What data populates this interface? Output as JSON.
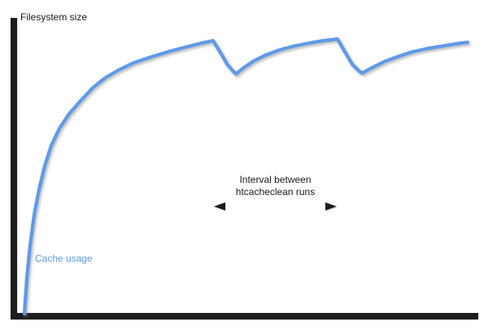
{
  "labels": {
    "filesystem_size": "Filesystem size",
    "cache_usage": "Cache usage",
    "interval_line1": "Interval between",
    "interval_line2": "htcacheclean runs"
  },
  "colors": {
    "curve_blue": "#5e9ae8",
    "line_black": "#1a1a1a",
    "text_black": "#1a1a1a",
    "shadow_gray": "#8a8a8a",
    "background": "#ffffff"
  },
  "chart_data": {
    "type": "line",
    "title": "",
    "xlabel": "",
    "ylabel": "",
    "scale_note": "qualitative sketch, no numeric axes; coordinates are canvas pixels (600x406, y down)",
    "axis": {
      "x": 17,
      "top": 22,
      "bottom": 389,
      "right": 588,
      "thickness": 8
    },
    "series": [
      {
        "name": "Cache usage",
        "color": "#5e9ae8",
        "stroke_width": 4.2,
        "points": [
          [
            30,
            386
          ],
          [
            33,
            342
          ],
          [
            37,
            302
          ],
          [
            42,
            264
          ],
          [
            48,
            233
          ],
          [
            55,
            204
          ],
          [
            63,
            179
          ],
          [
            73,
            158
          ],
          [
            85,
            140
          ],
          [
            99,
            124
          ],
          [
            114,
            108
          ],
          [
            129,
            96
          ],
          [
            146,
            86
          ],
          [
            165,
            77
          ],
          [
            186,
            70
          ],
          [
            209,
            63
          ],
          [
            232,
            57
          ],
          [
            248,
            53
          ],
          [
            262,
            50
          ],
          [
            270,
            63
          ],
          [
            280,
            80
          ],
          [
            287,
            88
          ],
          [
            290,
            91
          ],
          [
            300,
            83
          ],
          [
            312,
            75
          ],
          [
            326,
            68
          ],
          [
            342,
            62
          ],
          [
            360,
            57
          ],
          [
            380,
            53
          ],
          [
            398,
            50
          ],
          [
            415,
            48
          ],
          [
            423,
            62
          ],
          [
            433,
            79
          ],
          [
            441,
            87
          ],
          [
            445,
            90
          ],
          [
            458,
            83
          ],
          [
            472,
            76
          ],
          [
            488,
            70
          ],
          [
            506,
            64
          ],
          [
            524,
            60
          ],
          [
            542,
            57
          ],
          [
            560,
            54
          ],
          [
            575,
            52
          ]
        ]
      }
    ],
    "reference_lines": {
      "horizontal": [
        {
          "name": "filesystem-size-line",
          "label": "Filesystem size",
          "y": 34,
          "x1": 21,
          "x2": 590,
          "width": 2.6
        },
        {
          "name": "cache-limit-line",
          "label": "",
          "y": 90,
          "x1": 21,
          "x2": 589,
          "width": 1.8
        }
      ],
      "vertical": [
        {
          "name": "htcacheclean-run-line-1",
          "x": 262,
          "y1": 48,
          "y2": 385,
          "width": 1.8
        },
        {
          "name": "htcacheclean-run-line-2",
          "x": 415,
          "y1": 46,
          "y2": 385,
          "width": 1.8
        }
      ]
    },
    "annotation": {
      "text": [
        "Interval between",
        "htcacheclean runs"
      ],
      "arrow": {
        "x1": 263,
        "x2": 414,
        "y": 254,
        "width": 2.4,
        "head_length": 14,
        "head_half_height": 5
      }
    },
    "legend": {
      "position": "in-plot lower-left",
      "entries": [
        "Cache usage"
      ]
    }
  }
}
